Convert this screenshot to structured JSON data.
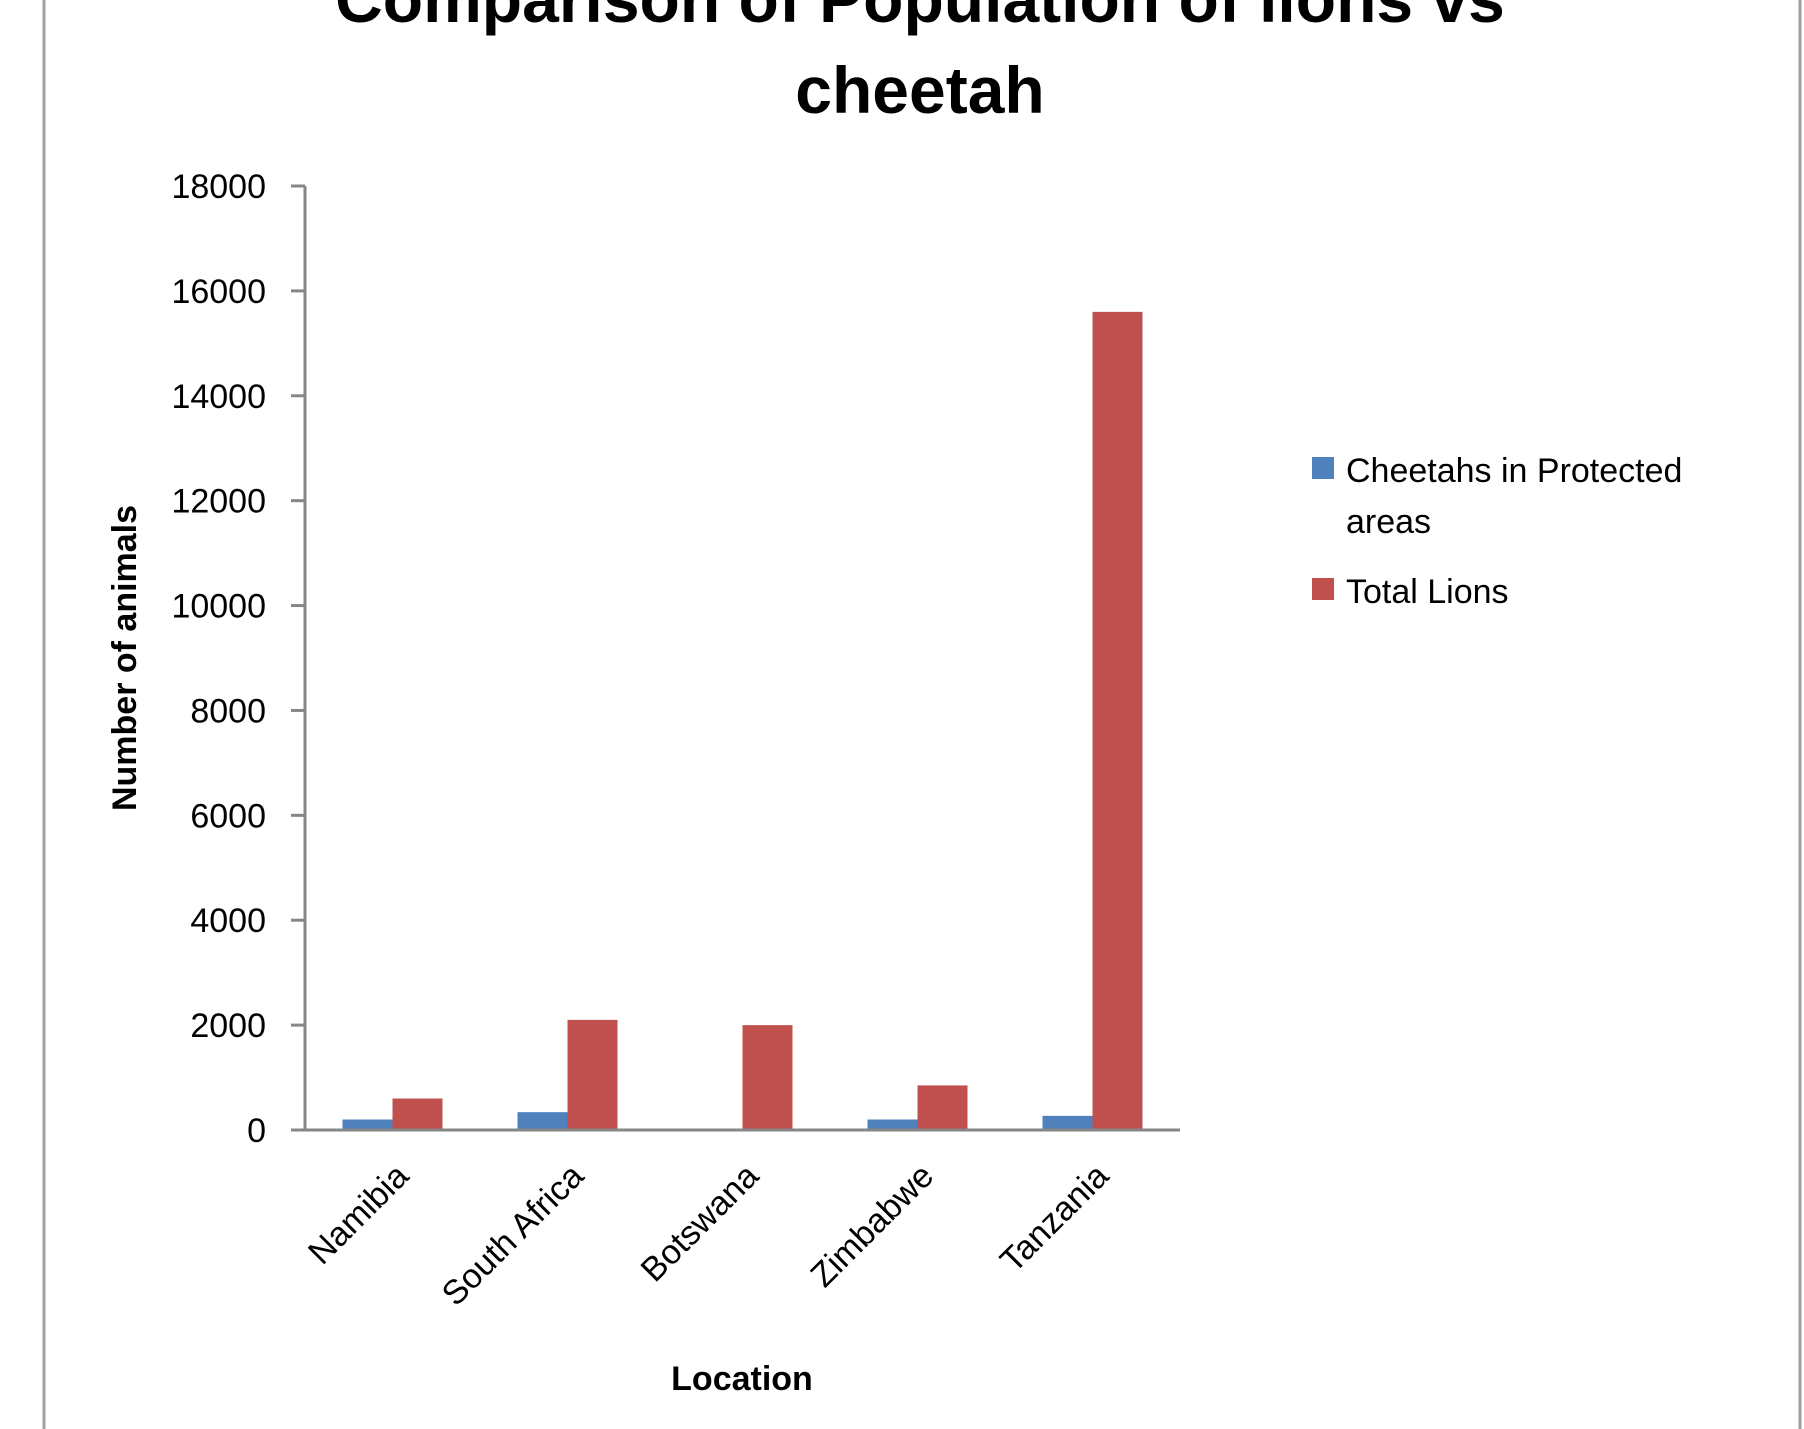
{
  "chart_data": {
    "type": "bar",
    "title": "Comparison of Population of lions vs cheetah",
    "title_lines": [
      "Comparison of Population of lions vs",
      "cheetah"
    ],
    "xlabel": "Location",
    "ylabel": "Number of animals",
    "categories": [
      "Namibia",
      "South Africa",
      "Botswana",
      "Zimbabwe",
      "Tanzania"
    ],
    "series": [
      {
        "name": "Cheetahs in Protected areas",
        "legend_lines": [
          "Cheetahs in Protected",
          "areas"
        ],
        "color": "#4F81BD",
        "values": [
          200,
          340,
          0,
          200,
          270
        ]
      },
      {
        "name": "Total Lions",
        "legend_lines": [
          "Total Lions"
        ],
        "color": "#C0504D",
        "values": [
          600,
          2100,
          2000,
          850,
          15600
        ]
      }
    ],
    "ylim": [
      0,
      18000
    ],
    "yticks": [
      "0",
      "2000",
      "4000",
      "6000",
      "8000",
      "10000",
      "12000",
      "14000",
      "16000",
      "18000"
    ],
    "grid": false,
    "legend_position": "right",
    "colors": {
      "axis": "#868686",
      "text": "#000000",
      "frame": "#a0a0a0"
    }
  }
}
